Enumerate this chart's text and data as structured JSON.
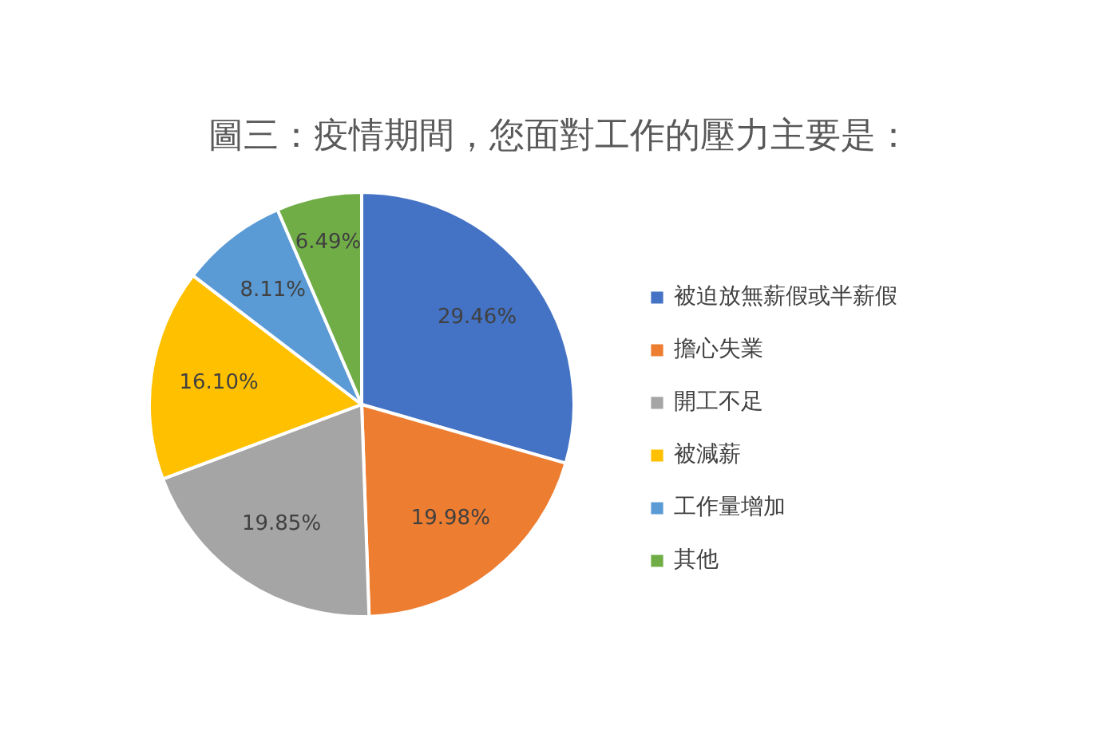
{
  "chart_data": {
    "type": "pie",
    "title": "圖三：疫情期間，您面對工作的壓力主要是：",
    "categories": [
      "被迫放無薪假或半薪假",
      "擔心失業",
      "開工不足",
      "被減薪",
      "工作量增加",
      "其他"
    ],
    "values": [
      29.46,
      19.98,
      19.85,
      16.1,
      8.11,
      6.49
    ],
    "colors": [
      "#4472c4",
      "#ed7d31",
      "#a5a5a5",
      "#ffc000",
      "#5b9bd5",
      "#70ad47"
    ],
    "value_labels": [
      "29.46%",
      "19.98%",
      "19.85%",
      "16.10%",
      "8.11%",
      "6.49%"
    ],
    "legend": "right"
  }
}
